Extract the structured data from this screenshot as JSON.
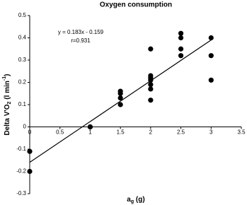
{
  "chart_data": {
    "type": "scatter",
    "title": "Oxygen consumption",
    "x_label": [
      "a",
      "g",
      " (g)"
    ],
    "y_label": [
      "Delta V'O",
      "2",
      " (l min",
      "-1",
      ")"
    ],
    "annotations": [
      "y = 0.183x - 0.159",
      "r=0.931"
    ],
    "series": [
      {
        "color": "#000000",
        "x": [
          0,
          0,
          1,
          1,
          1.5,
          1.5,
          1.5,
          1.5,
          2,
          2,
          2,
          2,
          2,
          2,
          2,
          2.5,
          2.5,
          2.5,
          2.5,
          3,
          3,
          3
        ],
        "values": [
          -0.11,
          -0.2,
          0,
          0,
          0.16,
          0.15,
          0.13,
          0.1,
          0.35,
          0.23,
          0.22,
          0.21,
          0.19,
          0.17,
          0.12,
          0.42,
          0.4,
          0.35,
          0.32,
          0.4,
          0.32,
          0.21
        ]
      }
    ],
    "trendline": {
      "color": "#000000",
      "x": [
        0,
        3
      ],
      "values": [
        -0.159,
        0.39
      ]
    },
    "xlim": [
      0,
      3.5
    ],
    "xticks": [
      0,
      0.5,
      1,
      1.5,
      2,
      2.5,
      3,
      3.5
    ],
    "ylim": [
      -0.3,
      0.5
    ],
    "yticks": [
      -0.3,
      -0.2,
      -0.1,
      0,
      0.1,
      0.2,
      0.3,
      0.4,
      0.5
    ]
  }
}
